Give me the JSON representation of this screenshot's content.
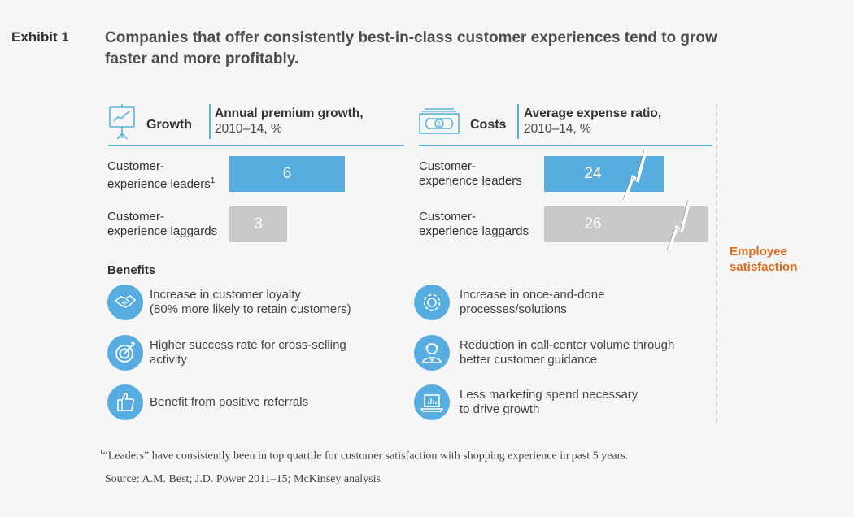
{
  "exhibit_label": "Exhibit 1",
  "title_line1": "Companies that offer consistently best-in-class customer experiences tend to grow",
  "title_line2": "faster and more profitably.",
  "colors": {
    "leaders": "#58ade0",
    "laggards": "#c9c9c9",
    "accent_line": "#5ab4de",
    "employee": "#e06a1b"
  },
  "chart_data": [
    {
      "type": "bar",
      "orientation": "horizontal",
      "panel": "Growth",
      "icon": "presentation-chart-icon",
      "title": "Annual premium growth,",
      "subtitle": "2010–14, %",
      "categories": [
        "Customer-experience leaders",
        "Customer-experience laggards"
      ],
      "category_lines": [
        [
          "Customer-",
          "experience leaders"
        ],
        [
          "Customer-",
          "experience laggards"
        ]
      ],
      "footnote_marker": "1",
      "values": [
        6,
        3
      ],
      "display_values": [
        "6",
        "3"
      ]
    },
    {
      "type": "bar",
      "orientation": "horizontal",
      "panel": "Costs",
      "icon": "money-bill-icon",
      "title": "Average expense ratio,",
      "subtitle": "2010–14, %",
      "categories": [
        "Customer-experience leaders",
        "Customer-experience laggards"
      ],
      "category_lines": [
        [
          "Customer-",
          "experience leaders"
        ],
        [
          "Customer-",
          "experience laggards"
        ]
      ],
      "values": [
        24,
        26
      ],
      "display_values": [
        "24",
        "26"
      ],
      "axis_break": true
    }
  ],
  "benefits": {
    "heading": "Benefits",
    "left": [
      {
        "icon": "handshake-icon",
        "lines": [
          "Increase in customer loyalty",
          "(80% more likely to retain customers)"
        ]
      },
      {
        "icon": "target-icon",
        "lines": [
          "Higher success rate for cross-selling",
          "activity"
        ]
      },
      {
        "icon": "thumbs-up-icon",
        "lines": [
          "Benefit from positive referrals",
          ""
        ]
      }
    ],
    "right": [
      {
        "icon": "gear-icon",
        "lines": [
          "Increase in once-and-done",
          "processes/solutions"
        ]
      },
      {
        "icon": "call-center-agent-icon",
        "lines": [
          "Reduction in call-center volume through",
          "better customer guidance"
        ]
      },
      {
        "icon": "laptop-chart-icon",
        "lines": [
          "Less marketing spend necessary",
          "to drive growth"
        ]
      }
    ]
  },
  "employee_satisfaction": [
    "Employee",
    "satisfaction"
  ],
  "footnote_marker": "1",
  "footnote": "“Leaders” have consistently been in top quartile for customer satisfaction with shopping experience in past 5 years.",
  "source": "Source: A.M. Best; J.D. Power 2011–15; McKinsey analysis"
}
